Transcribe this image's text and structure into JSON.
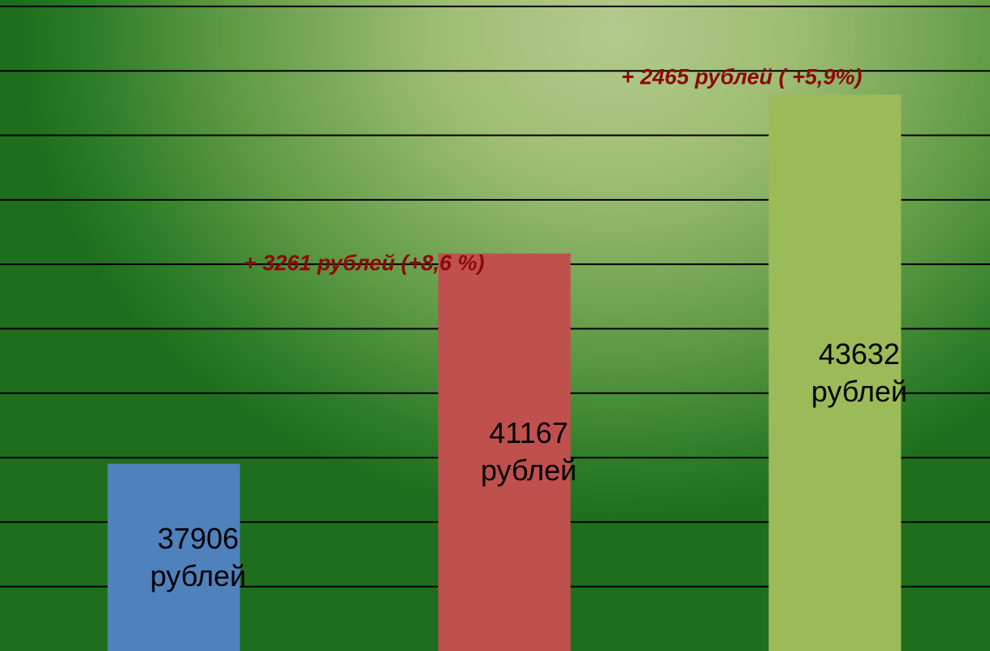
{
  "chart_data": {
    "type": "bar",
    "values": [
      37906,
      41167,
      43632
    ],
    "value_labels": [
      "37906\nрублей",
      "41167\nрублей",
      "43632\nрублей"
    ],
    "colors": [
      "#4f81bd",
      "#c0504d",
      "#9bbb59"
    ],
    "annotations": [
      "+ 3261 рублей (+8,6 %)",
      "+ 2465 рублей ( +5,9%)"
    ],
    "ylim": [
      35000,
      45100
    ],
    "yticks": [
      36000,
      37000,
      38000,
      39000,
      40000,
      41000,
      42000,
      43000,
      44000,
      45000
    ],
    "grid": true
  }
}
